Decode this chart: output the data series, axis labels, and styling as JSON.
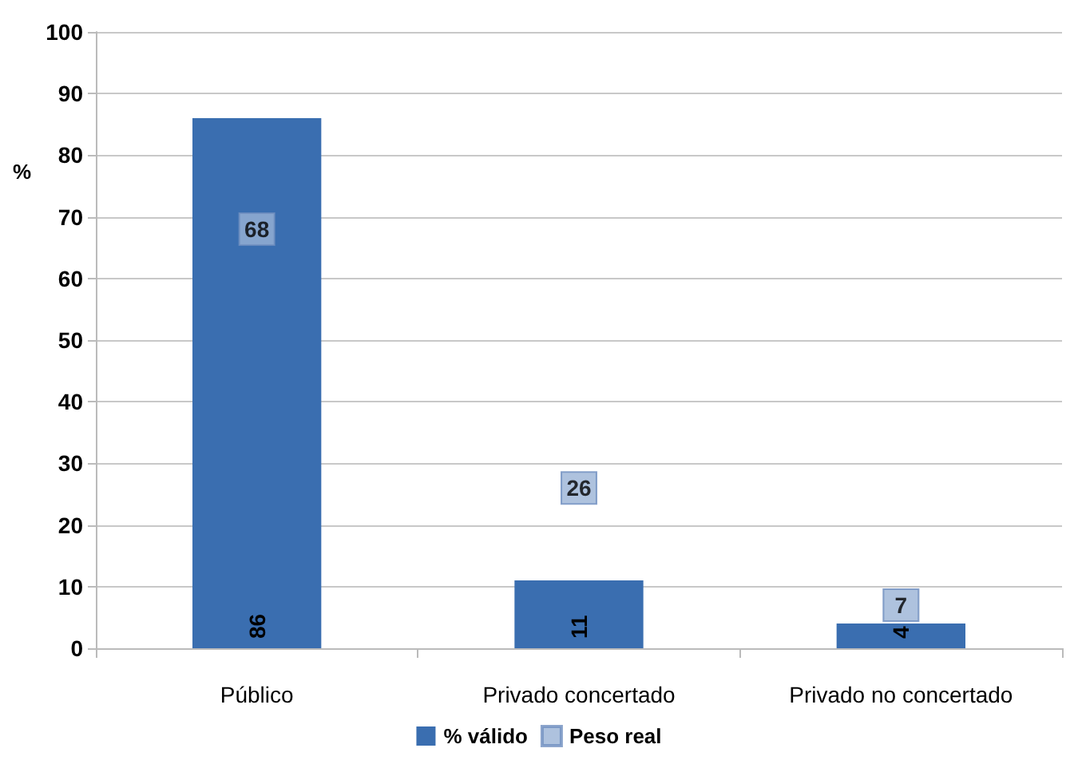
{
  "chart_data": {
    "type": "bar",
    "ylabel": "%",
    "categories": [
      "Público",
      "Privado concertado",
      "Privado no concertado"
    ],
    "series": [
      {
        "name": "% válido",
        "color": "#3a6eb0",
        "values": [
          86,
          11,
          4
        ]
      },
      {
        "name": "Peso real",
        "type": "scatter",
        "color": "#9ab3d6",
        "values": [
          68,
          26,
          7
        ],
        "marker": "square"
      }
    ],
    "ylim": [
      0,
      100
    ],
    "yticks": [
      0,
      10,
      20,
      30,
      40,
      50,
      60,
      70,
      80,
      90,
      100
    ],
    "grid": "y",
    "legend": "bottom",
    "data_labels": true
  }
}
